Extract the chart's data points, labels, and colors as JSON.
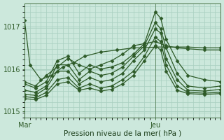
{
  "xlabel": "Pression niveau de la mer( hPa )",
  "background_color": "#cce8dc",
  "grid_color": "#a8cfbf",
  "line_color": "#2d5a27",
  "tick_color": "#2d5a27",
  "label_color": "#1a3d18",
  "xlim": [
    0,
    36
  ],
  "ylim": [
    1014.85,
    1017.55
  ],
  "yticks": [
    1015,
    1016,
    1017
  ],
  "ytick_labels": [
    "1015",
    "1016",
    "1017"
  ],
  "mar_x": 0,
  "jeu_x": 24,
  "vline_x": 24,
  "series": [
    {
      "x": [
        0,
        1,
        3,
        5,
        7,
        9,
        11,
        14,
        17,
        20,
        22,
        24,
        26,
        28,
        30,
        33,
        36
      ],
      "y": [
        1017.15,
        1016.1,
        1015.75,
        1015.85,
        1016.05,
        1016.15,
        1016.3,
        1016.4,
        1016.45,
        1016.5,
        1016.5,
        1016.52,
        1016.52,
        1016.52,
        1016.52,
        1016.5,
        1016.5
      ]
    },
    {
      "x": [
        0,
        2,
        4,
        6,
        8,
        10,
        12,
        14,
        16,
        18,
        20,
        22,
        24,
        26,
        28,
        30,
        33,
        36
      ],
      "y": [
        1015.7,
        1015.6,
        1015.85,
        1016.05,
        1016.25,
        1016.1,
        1016.0,
        1016.1,
        1016.2,
        1016.35,
        1016.55,
        1016.6,
        1016.65,
        1016.55,
        1016.5,
        1016.48,
        1016.45,
        1016.45
      ]
    },
    {
      "x": [
        0,
        2,
        4,
        6,
        8,
        10,
        12,
        14,
        16,
        18,
        20,
        22,
        24,
        25,
        26,
        28,
        30,
        33,
        36
      ],
      "y": [
        1015.65,
        1015.55,
        1015.7,
        1016.2,
        1016.3,
        1015.9,
        1016.1,
        1016.0,
        1016.05,
        1016.15,
        1016.35,
        1016.6,
        1017.35,
        1017.2,
        1016.7,
        1016.2,
        1015.85,
        1015.75,
        1015.7
      ]
    },
    {
      "x": [
        0,
        2,
        4,
        6,
        8,
        10,
        12,
        14,
        16,
        18,
        20,
        22,
        24,
        25,
        26,
        28,
        30,
        33,
        36
      ],
      "y": [
        1015.5,
        1015.45,
        1015.6,
        1016.1,
        1016.1,
        1015.75,
        1015.95,
        1015.85,
        1015.9,
        1016.05,
        1016.3,
        1016.55,
        1017.1,
        1016.95,
        1016.5,
        1015.9,
        1015.6,
        1015.55,
        1015.6
      ]
    },
    {
      "x": [
        0,
        2,
        4,
        6,
        8,
        10,
        12,
        14,
        16,
        18,
        20,
        22,
        24,
        25,
        26,
        28,
        30,
        33,
        36
      ],
      "y": [
        1015.4,
        1015.38,
        1015.55,
        1015.95,
        1015.95,
        1015.65,
        1015.8,
        1015.7,
        1015.75,
        1015.9,
        1016.2,
        1016.45,
        1016.95,
        1016.85,
        1016.25,
        1015.75,
        1015.5,
        1015.48,
        1015.52
      ]
    },
    {
      "x": [
        0,
        2,
        4,
        6,
        8,
        10,
        12,
        14,
        16,
        18,
        20,
        22,
        24,
        25,
        26,
        28,
        30,
        33,
        36
      ],
      "y": [
        1015.35,
        1015.32,
        1015.45,
        1015.75,
        1015.8,
        1015.55,
        1015.65,
        1015.55,
        1015.6,
        1015.75,
        1015.95,
        1016.3,
        1016.75,
        1016.65,
        1016.1,
        1015.6,
        1015.45,
        1015.43,
        1015.45
      ]
    },
    {
      "x": [
        0,
        2,
        4,
        6,
        8,
        10,
        12,
        14,
        16,
        18,
        20,
        22,
        24,
        25,
        26,
        28,
        30,
        33,
        36
      ],
      "y": [
        1015.3,
        1015.28,
        1015.38,
        1015.65,
        1015.7,
        1015.5,
        1015.55,
        1015.48,
        1015.52,
        1015.65,
        1015.85,
        1016.2,
        1016.55,
        1016.45,
        1015.95,
        1015.5,
        1015.42,
        1015.4,
        1015.42
      ]
    }
  ],
  "marker": "D",
  "markersize": 2.5,
  "linewidth": 0.9
}
